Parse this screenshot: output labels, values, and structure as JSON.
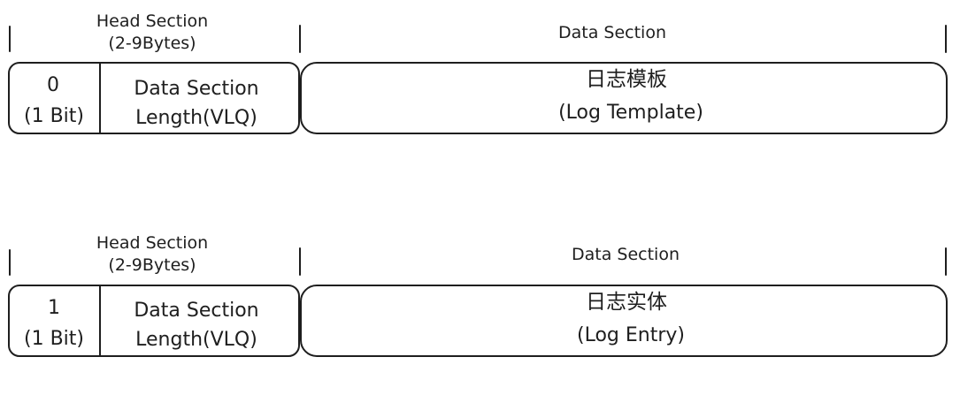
{
  "colors": {
    "hatch": "#a5d8ff",
    "template_fill": "#fa5252",
    "entry_fill": "#a5d8ff",
    "stroke": "#1e1e1e",
    "background": "#ffffff"
  },
  "rows": [
    {
      "head_label_line1": "Head Section",
      "head_label_line2": "(2-9Bytes)",
      "data_label": "Data Section",
      "flag_value": "0",
      "flag_unit": "(1 Bit)",
      "length_line1": "Data Section",
      "length_line2": "Length(VLQ)",
      "data_title": "日志模板",
      "data_subtitle": "(Log Template)",
      "data_color_key": "template_fill"
    },
    {
      "head_label_line1": "Head Section",
      "head_label_line2": "(2-9Bytes)",
      "data_label": "Data Section",
      "flag_value": "1",
      "flag_unit": "(1 Bit)",
      "length_line1": "Data Section",
      "length_line2": "Length(VLQ)",
      "data_title": "日志实体",
      "data_subtitle": "(Log Entry)",
      "data_color_key": "entry_fill"
    }
  ]
}
